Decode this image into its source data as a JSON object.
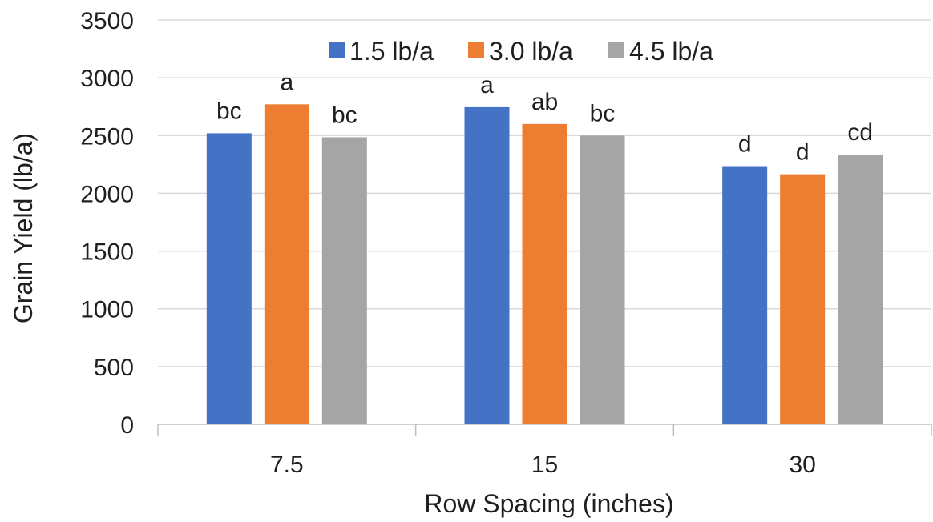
{
  "chart_data": {
    "type": "bar",
    "title": "",
    "xlabel": "Row Spacing (inches)",
    "ylabel": "Grain Yield (lb/a)",
    "categories": [
      "7.5",
      "15",
      "30"
    ],
    "ylim": [
      0,
      3500
    ],
    "yticks": [
      "0",
      "500",
      "1000",
      "1500",
      "2000",
      "2500",
      "3000",
      "3500"
    ],
    "grid": true,
    "legend_position": "top",
    "series": [
      {
        "name": "1.5 lb/a",
        "color": "#4472c4",
        "values": [
          2520,
          2745,
          2235
        ],
        "labels": [
          "bc",
          "a",
          "d"
        ]
      },
      {
        "name": "3.0 lb/a",
        "color": "#ed7d31",
        "values": [
          2770,
          2600,
          2165
        ],
        "labels": [
          "a",
          "ab",
          "d"
        ]
      },
      {
        "name": "4.5 lb/a",
        "color": "#a5a5a5",
        "values": [
          2485,
          2500,
          2335
        ],
        "labels": [
          "bc",
          "bc",
          "cd"
        ]
      }
    ]
  }
}
